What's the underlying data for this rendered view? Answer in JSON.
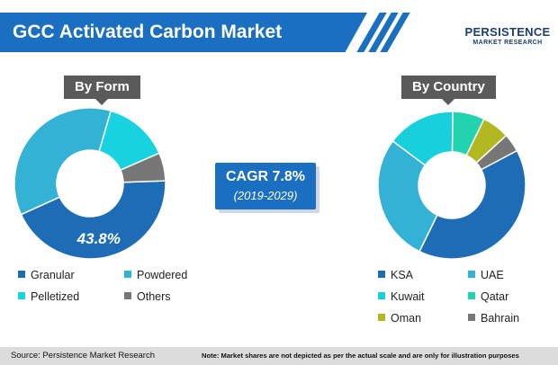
{
  "title": "GCC Activated Carbon Market",
  "logo": {
    "main": "PERSISTENCE",
    "sub": "MARKET RESEARCH"
  },
  "cagr": {
    "value": "CAGR 7.8%",
    "period": "(2019-2029)"
  },
  "footer": {
    "source": "Source: Persistence Market Research",
    "note": "Note: Market shares are not depicted as per the actual scale and are only for illustration purposes"
  },
  "colors": {
    "brand_blue": "#1a6fc0",
    "tag_gray": "#5a5a5a"
  },
  "chart_data": [
    {
      "type": "pie",
      "title": "By Form",
      "categories": [
        "Granular",
        "Powdered",
        "Pelletized",
        "Others"
      ],
      "values": [
        43.8,
        36.2,
        14,
        6
      ],
      "colors": [
        "#1f6cb6",
        "#33b2d6",
        "#18d3df",
        "#777777"
      ],
      "slice_labels": [
        "43.8%",
        "",
        "",
        ""
      ],
      "legend_position": "bottom"
    },
    {
      "type": "pie",
      "title": "By Country",
      "categories": [
        "KSA",
        "UAE",
        "Kuwait",
        "Qatar",
        "Oman",
        "Bahrain"
      ],
      "values": [
        40,
        28,
        15,
        7,
        6,
        4
      ],
      "colors": [
        "#1f6cb6",
        "#33b2d6",
        "#18cfdc",
        "#22d3b0",
        "#b2b81f",
        "#777777"
      ],
      "slice_labels": [
        "",
        "",
        "",
        "",
        "",
        ""
      ],
      "legend_position": "bottom"
    }
  ]
}
